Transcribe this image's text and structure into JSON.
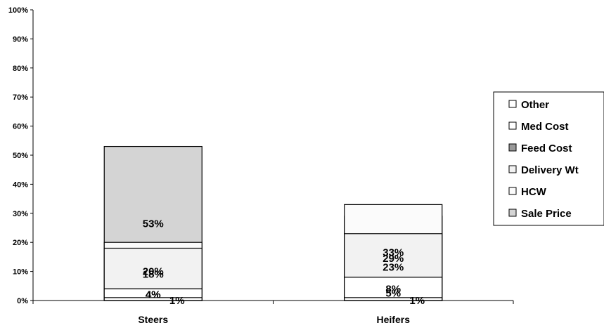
{
  "chart_data": {
    "type": "bar",
    "stacked": true,
    "percent": true,
    "categories": [
      "Steers",
      "Heifers"
    ],
    "ylim": [
      0,
      100
    ],
    "yticks": [
      "0%",
      "10%",
      "20%",
      "30%",
      "40%",
      "50%",
      "60%",
      "70%",
      "80%",
      "90%",
      "100%"
    ],
    "grid": false,
    "legend_position": "right",
    "series": [
      {
        "name": "Sale Price",
        "values": [
          53,
          29
        ],
        "labels": [
          "53%",
          "29%"
        ],
        "color": "#d4d4d4"
      },
      {
        "name": "HCW",
        "values": [
          20,
          33
        ],
        "labels": [
          "20%",
          "33%"
        ],
        "color": "#fbfbfb"
      },
      {
        "name": "Delivery Wt",
        "values": [
          18,
          23
        ],
        "labels": [
          "18%",
          "23%"
        ],
        "color": "#f2f2f2"
      },
      {
        "name": "Feed Cost",
        "values": [
          4,
          5
        ],
        "labels": [
          "4%",
          "5%"
        ],
        "color": "#999999"
      },
      {
        "name": "Med Cost",
        "values": [
          4,
          8
        ],
        "labels": [
          "4%",
          "8%"
        ],
        "color": "#ffffff"
      },
      {
        "name": "Other",
        "values": [
          1,
          1
        ],
        "labels": [
          "1%",
          "1%"
        ],
        "color": "#ffffff"
      }
    ]
  }
}
